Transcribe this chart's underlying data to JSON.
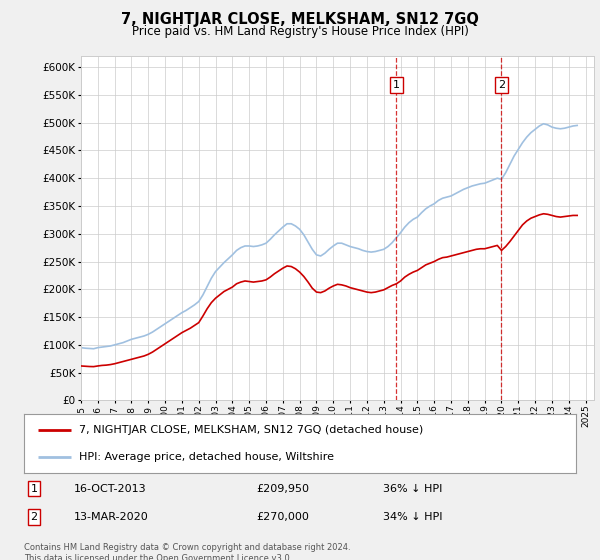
{
  "title": "7, NIGHTJAR CLOSE, MELKSHAM, SN12 7GQ",
  "subtitle": "Price paid vs. HM Land Registry's House Price Index (HPI)",
  "ylim": [
    0,
    620000
  ],
  "yticks": [
    0,
    50000,
    100000,
    150000,
    200000,
    250000,
    300000,
    350000,
    400000,
    450000,
    500000,
    550000,
    600000
  ],
  "hpi_color": "#a0c0e0",
  "price_color": "#cc0000",
  "legend_line1": "7, NIGHTJAR CLOSE, MELKSHAM, SN12 7GQ (detached house)",
  "legend_line2": "HPI: Average price, detached house, Wiltshire",
  "footnote": "Contains HM Land Registry data © Crown copyright and database right 2024.\nThis data is licensed under the Open Government Licence v3.0.",
  "background_color": "#f0f0f0",
  "plot_bg_color": "#ffffff",
  "hpi_data": [
    [
      1995.0,
      95000
    ],
    [
      1995.25,
      94000
    ],
    [
      1995.5,
      93500
    ],
    [
      1995.75,
      93000
    ],
    [
      1996.0,
      95000
    ],
    [
      1996.25,
      96000
    ],
    [
      1996.5,
      97000
    ],
    [
      1996.75,
      98000
    ],
    [
      1997.0,
      100000
    ],
    [
      1997.25,
      102000
    ],
    [
      1997.5,
      104000
    ],
    [
      1997.75,
      107000
    ],
    [
      1998.0,
      110000
    ],
    [
      1998.25,
      112000
    ],
    [
      1998.5,
      114000
    ],
    [
      1998.75,
      116000
    ],
    [
      1999.0,
      119000
    ],
    [
      1999.25,
      123000
    ],
    [
      1999.5,
      128000
    ],
    [
      1999.75,
      133000
    ],
    [
      2000.0,
      138000
    ],
    [
      2000.25,
      143000
    ],
    [
      2000.5,
      148000
    ],
    [
      2000.75,
      153000
    ],
    [
      2001.0,
      158000
    ],
    [
      2001.25,
      162000
    ],
    [
      2001.5,
      167000
    ],
    [
      2001.75,
      172000
    ],
    [
      2002.0,
      178000
    ],
    [
      2002.25,
      190000
    ],
    [
      2002.5,
      205000
    ],
    [
      2002.75,
      220000
    ],
    [
      2003.0,
      232000
    ],
    [
      2003.25,
      240000
    ],
    [
      2003.5,
      248000
    ],
    [
      2003.75,
      255000
    ],
    [
      2004.0,
      262000
    ],
    [
      2004.25,
      270000
    ],
    [
      2004.5,
      275000
    ],
    [
      2004.75,
      278000
    ],
    [
      2005.0,
      278000
    ],
    [
      2005.25,
      277000
    ],
    [
      2005.5,
      278000
    ],
    [
      2005.75,
      280000
    ],
    [
      2006.0,
      283000
    ],
    [
      2006.25,
      290000
    ],
    [
      2006.5,
      298000
    ],
    [
      2006.75,
      305000
    ],
    [
      2007.0,
      312000
    ],
    [
      2007.25,
      318000
    ],
    [
      2007.5,
      318000
    ],
    [
      2007.75,
      314000
    ],
    [
      2008.0,
      308000
    ],
    [
      2008.25,
      298000
    ],
    [
      2008.5,
      285000
    ],
    [
      2008.75,
      272000
    ],
    [
      2009.0,
      262000
    ],
    [
      2009.25,
      260000
    ],
    [
      2009.5,
      265000
    ],
    [
      2009.75,
      272000
    ],
    [
      2010.0,
      278000
    ],
    [
      2010.25,
      283000
    ],
    [
      2010.5,
      283000
    ],
    [
      2010.75,
      280000
    ],
    [
      2011.0,
      277000
    ],
    [
      2011.25,
      275000
    ],
    [
      2011.5,
      273000
    ],
    [
      2011.75,
      270000
    ],
    [
      2012.0,
      268000
    ],
    [
      2012.25,
      267000
    ],
    [
      2012.5,
      268000
    ],
    [
      2012.75,
      270000
    ],
    [
      2013.0,
      272000
    ],
    [
      2013.25,
      277000
    ],
    [
      2013.5,
      284000
    ],
    [
      2013.75,
      293000
    ],
    [
      2014.0,
      302000
    ],
    [
      2014.25,
      312000
    ],
    [
      2014.5,
      320000
    ],
    [
      2014.75,
      326000
    ],
    [
      2015.0,
      330000
    ],
    [
      2015.25,
      338000
    ],
    [
      2015.5,
      345000
    ],
    [
      2015.75,
      350000
    ],
    [
      2016.0,
      354000
    ],
    [
      2016.25,
      360000
    ],
    [
      2016.5,
      364000
    ],
    [
      2016.75,
      366000
    ],
    [
      2017.0,
      368000
    ],
    [
      2017.25,
      372000
    ],
    [
      2017.5,
      376000
    ],
    [
      2017.75,
      380000
    ],
    [
      2018.0,
      383000
    ],
    [
      2018.25,
      386000
    ],
    [
      2018.5,
      388000
    ],
    [
      2018.75,
      390000
    ],
    [
      2019.0,
      391000
    ],
    [
      2019.25,
      394000
    ],
    [
      2019.5,
      397000
    ],
    [
      2019.75,
      400000
    ],
    [
      2020.0,
      398000
    ],
    [
      2020.25,
      410000
    ],
    [
      2020.5,
      425000
    ],
    [
      2020.75,
      440000
    ],
    [
      2021.0,
      452000
    ],
    [
      2021.25,
      464000
    ],
    [
      2021.5,
      474000
    ],
    [
      2021.75,
      482000
    ],
    [
      2022.0,
      488000
    ],
    [
      2022.25,
      494000
    ],
    [
      2022.5,
      498000
    ],
    [
      2022.75,
      496000
    ],
    [
      2023.0,
      492000
    ],
    [
      2023.25,
      490000
    ],
    [
      2023.5,
      489000
    ],
    [
      2023.75,
      490000
    ],
    [
      2024.0,
      492000
    ],
    [
      2024.25,
      494000
    ],
    [
      2024.5,
      495000
    ]
  ],
  "price_data": [
    [
      1995.0,
      62000
    ],
    [
      1995.25,
      61500
    ],
    [
      1995.5,
      61000
    ],
    [
      1995.75,
      60800
    ],
    [
      1996.0,
      62000
    ],
    [
      1996.25,
      63000
    ],
    [
      1996.5,
      63500
    ],
    [
      1996.75,
      64500
    ],
    [
      1997.0,
      66000
    ],
    [
      1997.25,
      68000
    ],
    [
      1997.5,
      70000
    ],
    [
      1997.75,
      72000
    ],
    [
      1998.0,
      74000
    ],
    [
      1998.25,
      76000
    ],
    [
      1998.5,
      78000
    ],
    [
      1998.75,
      80000
    ],
    [
      1999.0,
      83000
    ],
    [
      1999.25,
      87000
    ],
    [
      1999.5,
      92000
    ],
    [
      1999.75,
      97000
    ],
    [
      2000.0,
      102000
    ],
    [
      2000.25,
      107000
    ],
    [
      2000.5,
      112000
    ],
    [
      2000.75,
      117000
    ],
    [
      2001.0,
      122000
    ],
    [
      2001.25,
      126000
    ],
    [
      2001.5,
      130000
    ],
    [
      2001.75,
      135000
    ],
    [
      2002.0,
      140000
    ],
    [
      2002.25,
      152000
    ],
    [
      2002.5,
      165000
    ],
    [
      2002.75,
      176000
    ],
    [
      2003.0,
      184000
    ],
    [
      2003.25,
      190000
    ],
    [
      2003.5,
      196000
    ],
    [
      2003.75,
      200000
    ],
    [
      2004.0,
      204000
    ],
    [
      2004.25,
      210000
    ],
    [
      2004.5,
      213000
    ],
    [
      2004.75,
      215000
    ],
    [
      2005.0,
      214000
    ],
    [
      2005.25,
      213000
    ],
    [
      2005.5,
      214000
    ],
    [
      2005.75,
      215000
    ],
    [
      2006.0,
      217000
    ],
    [
      2006.25,
      222000
    ],
    [
      2006.5,
      228000
    ],
    [
      2006.75,
      233000
    ],
    [
      2007.0,
      238000
    ],
    [
      2007.25,
      242000
    ],
    [
      2007.5,
      241000
    ],
    [
      2007.75,
      237000
    ],
    [
      2008.0,
      231000
    ],
    [
      2008.25,
      223000
    ],
    [
      2008.5,
      213000
    ],
    [
      2008.75,
      202000
    ],
    [
      2009.0,
      195000
    ],
    [
      2009.25,
      194000
    ],
    [
      2009.5,
      197000
    ],
    [
      2009.75,
      202000
    ],
    [
      2010.0,
      206000
    ],
    [
      2010.25,
      209000
    ],
    [
      2010.5,
      208000
    ],
    [
      2010.75,
      206000
    ],
    [
      2011.0,
      203000
    ],
    [
      2011.25,
      201000
    ],
    [
      2011.5,
      199000
    ],
    [
      2011.75,
      197000
    ],
    [
      2012.0,
      195000
    ],
    [
      2012.25,
      194000
    ],
    [
      2012.5,
      195000
    ],
    [
      2012.75,
      197000
    ],
    [
      2013.0,
      199000
    ],
    [
      2013.25,
      203000
    ],
    [
      2013.5,
      207000
    ],
    [
      2013.75,
      209950
    ],
    [
      2014.0,
      215000
    ],
    [
      2014.25,
      222000
    ],
    [
      2014.5,
      227000
    ],
    [
      2014.75,
      231000
    ],
    [
      2015.0,
      234000
    ],
    [
      2015.25,
      239000
    ],
    [
      2015.5,
      244000
    ],
    [
      2015.75,
      247000
    ],
    [
      2016.0,
      250000
    ],
    [
      2016.25,
      254000
    ],
    [
      2016.5,
      257000
    ],
    [
      2016.75,
      258000
    ],
    [
      2017.0,
      260000
    ],
    [
      2017.25,
      262000
    ],
    [
      2017.5,
      264000
    ],
    [
      2017.75,
      266000
    ],
    [
      2018.0,
      268000
    ],
    [
      2018.25,
      270000
    ],
    [
      2018.5,
      272000
    ],
    [
      2018.75,
      273000
    ],
    [
      2019.0,
      273000
    ],
    [
      2019.25,
      275000
    ],
    [
      2019.5,
      277000
    ],
    [
      2019.75,
      279000
    ],
    [
      2020.0,
      270000
    ],
    [
      2020.25,
      277000
    ],
    [
      2020.5,
      286000
    ],
    [
      2020.75,
      296000
    ],
    [
      2021.0,
      306000
    ],
    [
      2021.25,
      316000
    ],
    [
      2021.5,
      323000
    ],
    [
      2021.75,
      328000
    ],
    [
      2022.0,
      331000
    ],
    [
      2022.25,
      334000
    ],
    [
      2022.5,
      336000
    ],
    [
      2022.75,
      335000
    ],
    [
      2023.0,
      333000
    ],
    [
      2023.25,
      331000
    ],
    [
      2023.5,
      330000
    ],
    [
      2023.75,
      331000
    ],
    [
      2024.0,
      332000
    ],
    [
      2024.25,
      333000
    ],
    [
      2024.5,
      333000
    ]
  ],
  "marker1_x": 2013.75,
  "marker2_x": 2020.0,
  "xmin": 1995.0,
  "xmax": 2025.5
}
